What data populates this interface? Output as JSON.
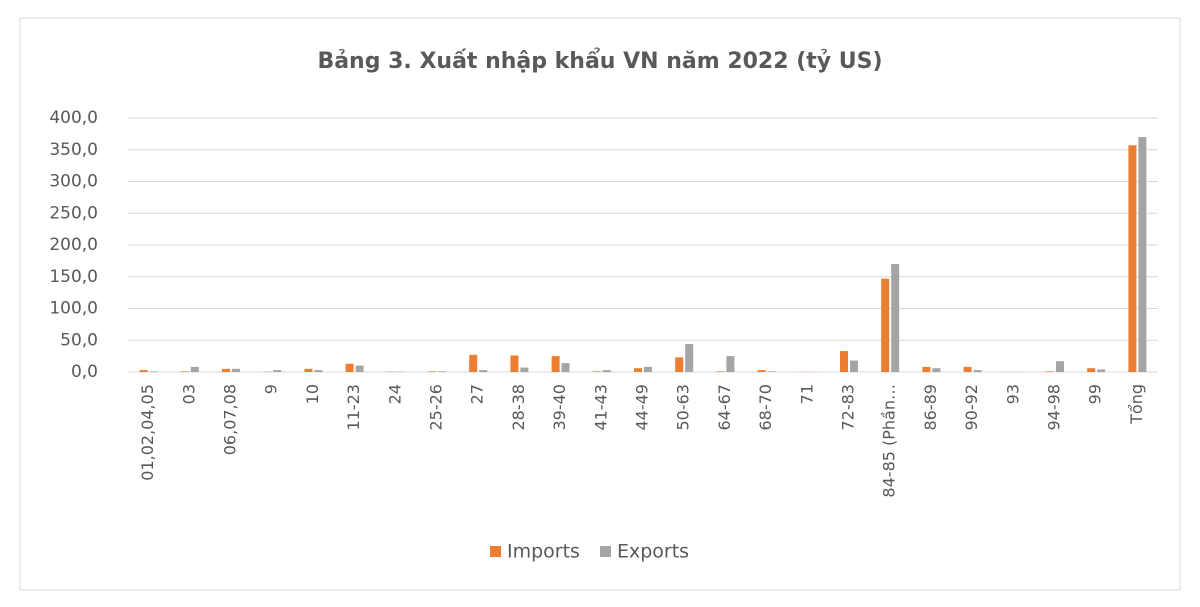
{
  "chart_data": {
    "type": "bar",
    "title": "Bảng 3. Xuất nhập khẩu VN năm 2022 (tỷ US)",
    "categories": [
      "01,02,04,05",
      "03",
      "06,07,08",
      "9",
      "10",
      "11-23",
      "24",
      "25-26",
      "27",
      "28-38",
      "39-40",
      "41-43",
      "44-49",
      "50-63",
      "64-67",
      "68-70",
      "71",
      "72-83",
      "84-85 (Phần…",
      "86-89",
      "90-92",
      "93",
      "94-98",
      "99",
      "Tổng"
    ],
    "series": [
      {
        "name": "Imports",
        "color": "#ed7d31",
        "values": [
          3,
          1,
          5,
          0.5,
          5,
          13,
          0.5,
          1,
          27,
          26,
          25,
          1,
          6,
          23,
          1,
          3,
          0.3,
          33,
          147,
          8,
          8,
          0.2,
          1,
          6,
          357
        ]
      },
      {
        "name": "Exports",
        "color": "#a5a5a5",
        "values": [
          1,
          8,
          5,
          3,
          3,
          10,
          0.5,
          1,
          3,
          7,
          14,
          3,
          8,
          44,
          25,
          1,
          0.3,
          18,
          170,
          6,
          3,
          0.2,
          17,
          4,
          370
        ]
      }
    ],
    "ylim": [
      0,
      400
    ],
    "yticks": [
      {
        "value": 0,
        "label": "0,0"
      },
      {
        "value": 50,
        "label": "50,0"
      },
      {
        "value": 100,
        "label": "100,0"
      },
      {
        "value": 150,
        "label": "150,0"
      },
      {
        "value": 200,
        "label": "200,0"
      },
      {
        "value": 250,
        "label": "250,0"
      },
      {
        "value": 300,
        "label": "300,0"
      },
      {
        "value": 350,
        "label": "350,0"
      },
      {
        "value": 400,
        "label": "400,0"
      }
    ],
    "grid": true,
    "legend": "bottom"
  }
}
